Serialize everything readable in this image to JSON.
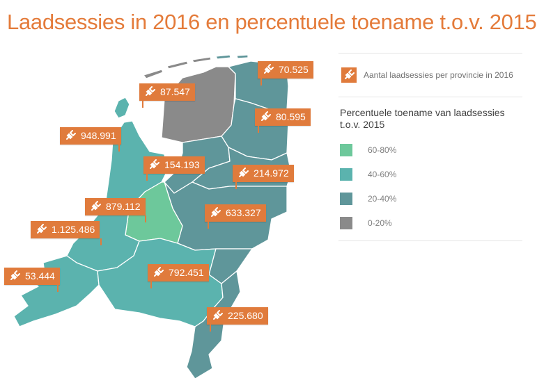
{
  "title": "Laadsessies in 2016 en percentuele toename t.o.v. 2015",
  "legend": {
    "main_label": "Aantal laadsessies per provincie in 2016",
    "main_icon": "plug-icon",
    "subtitle_line1": "Percentuele toename van laadsessies",
    "subtitle_line2": "t.o.v. 2015",
    "classes": [
      {
        "label": "60-80%",
        "color": "#6dc89b"
      },
      {
        "label": "40-60%",
        "color": "#5bb3ae"
      },
      {
        "label": "20-40%",
        "color": "#5f969a"
      },
      {
        "label": "0-20%",
        "color": "#8a8a8a"
      }
    ]
  },
  "colors": {
    "accent": "#e07b3c",
    "title": "#e47b3a",
    "water": "#5f969a"
  },
  "provinces": [
    {
      "name": "Groningen",
      "sessions": "70.525",
      "class": "20-40%"
    },
    {
      "name": "Friesland",
      "sessions": "87.547",
      "class": "0-20%"
    },
    {
      "name": "Drenthe",
      "sessions": "80.595",
      "class": "20-40%"
    },
    {
      "name": "Noord-Holland",
      "sessions": "948.991",
      "class": "40-60%"
    },
    {
      "name": "Flevoland",
      "sessions": "154.193",
      "class": "20-40%"
    },
    {
      "name": "Overijssel",
      "sessions": "214.972",
      "class": "20-40%"
    },
    {
      "name": "Utrecht",
      "sessions": "879.112",
      "class": "60-80%"
    },
    {
      "name": "Gelderland",
      "sessions": "633.327",
      "class": "20-40%"
    },
    {
      "name": "Zuid-Holland",
      "sessions": "1.125.486",
      "class": "40-60%"
    },
    {
      "name": "Zeeland",
      "sessions": "53.444",
      "class": "40-60%"
    },
    {
      "name": "Noord-Brabant",
      "sessions": "792.451",
      "class": "40-60%"
    },
    {
      "name": "Limburg",
      "sessions": "225.680",
      "class": "20-40%"
    }
  ]
}
